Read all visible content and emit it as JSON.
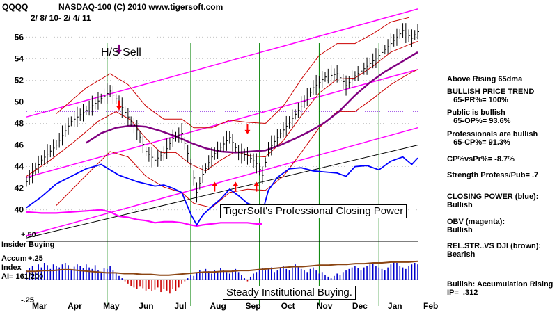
{
  "header": {
    "symbol": "QQQQ",
    "title": "NASDAQ-100  (C) 2010 www.tigersoft.com",
    "date_range": "2/ 8/ 10-  2/ 4/ 11"
  },
  "annotations": {
    "hs_sell": "H/S Sell",
    "closing_power_box": "TigerSoft's Professional Closing Power",
    "institutional_box": "Steady Institutional Buying."
  },
  "lower_panel": {
    "top_value": "+.50",
    "mid_value": "+.25",
    "bottom_value": "-.25",
    "insider_label": "Insider Buying",
    "accum_label_1": "Accum",
    "accum_label_2": "Index",
    "ai_label": "AI= 161/200"
  },
  "side_notes": [
    {
      "text": "Above Rising 65dma"
    },
    {
      "text": "BULLISH PRICE TREND"
    },
    {
      "text": "   65-PR%= 100%"
    },
    {
      "text": "Public is bullish"
    },
    {
      "text": "   65-OP%= 93.6%"
    },
    {
      "text": "Professionals are bullish"
    },
    {
      "text": "   65-CP%= 91.3%"
    },
    {
      "text": "CP%vsPr%= -8.7%"
    },
    {
      "text": "Strength Profess/Pub= .7"
    },
    {
      "text": "CLOSING POWER (blue):"
    },
    {
      "text": "Bullish"
    },
    {
      "text": "OBV (magenta):"
    },
    {
      "text": "Bullish"
    },
    {
      "text": "REL.STR..VS DJI (brown):"
    },
    {
      "text": "Bearish"
    },
    {
      "text": "Bullish: Accumulation Rising"
    },
    {
      "text": "IP=  .312"
    }
  ],
  "chart_data": {
    "type": "line",
    "title": "NASDAQ-100  (C) 2010 www.tigersoft.com",
    "x_categories": [
      "Mar",
      "Apr",
      "May",
      "Jun",
      "Jul",
      "Aug",
      "Sep",
      "Oct",
      "Nov",
      "Dec",
      "Jan",
      "Feb"
    ],
    "ylim": [
      38.5,
      57.5
    ],
    "y_ticks": [
      40,
      42,
      44,
      46,
      48,
      50,
      52,
      54,
      56
    ],
    "colors": {
      "price": "#000000",
      "closing_power": "#0000ff",
      "obv": "#ff00ff",
      "ma65": "#800080",
      "bands": "#cc0000",
      "trend_channel": "#ff00ff",
      "signals": "#008000",
      "accumulation": "#0000cc",
      "distribution": "#cc0000",
      "rel_strength": "#8b4513"
    },
    "series": [
      {
        "name": "price",
        "values": [
          [
            0,
            42.6
          ],
          [
            5,
            44.6
          ],
          [
            10,
            46.0
          ],
          [
            15,
            48.2
          ],
          [
            20,
            49.2
          ],
          [
            25,
            50.3
          ],
          [
            28,
            51.0
          ],
          [
            31,
            49.9
          ],
          [
            34,
            48.6
          ],
          [
            37,
            47.4
          ],
          [
            40,
            45.4
          ],
          [
            43,
            44.6
          ],
          [
            46,
            45.2
          ],
          [
            49,
            46.6
          ],
          [
            52,
            47.1
          ],
          [
            55,
            44.3
          ],
          [
            57,
            41.6
          ],
          [
            59,
            43.3
          ],
          [
            62,
            44.9
          ],
          [
            65,
            45.8
          ],
          [
            68,
            46.7
          ],
          [
            71,
            45.3
          ],
          [
            74,
            45.0
          ],
          [
            77,
            44.3
          ],
          [
            79,
            43.2
          ],
          [
            81,
            45.6
          ],
          [
            84,
            46.7
          ],
          [
            88,
            48.1
          ],
          [
            92,
            49.6
          ],
          [
            96,
            51.3
          ],
          [
            100,
            52.3
          ],
          [
            104,
            52.6
          ],
          [
            107,
            51.5
          ],
          [
            110,
            52.4
          ],
          [
            114,
            53.3
          ],
          [
            118,
            54.3
          ],
          [
            122,
            55.4
          ],
          [
            126,
            56.6
          ],
          [
            129,
            55.9
          ],
          [
            131,
            56.5
          ]
        ]
      },
      {
        "name": "closing_power",
        "values": [
          [
            0,
            40.2
          ],
          [
            5,
            41.2
          ],
          [
            10,
            42.4
          ],
          [
            15,
            43.1
          ],
          [
            20,
            43.8
          ],
          [
            25,
            44.2
          ],
          [
            28,
            43.7
          ],
          [
            31,
            43.2
          ],
          [
            34,
            42.9
          ],
          [
            37,
            42.6
          ],
          [
            40,
            42.4
          ],
          [
            43,
            42.2
          ],
          [
            46,
            42.3
          ],
          [
            49,
            42.0
          ],
          [
            52,
            41.6
          ],
          [
            55,
            39.6
          ],
          [
            57,
            38.6
          ],
          [
            59,
            39.5
          ],
          [
            62,
            40.3
          ],
          [
            65,
            41.0
          ],
          [
            68,
            41.9
          ],
          [
            71,
            41.3
          ],
          [
            74,
            40.6
          ],
          [
            77,
            40.3
          ],
          [
            79,
            39.8
          ],
          [
            81,
            41.8
          ],
          [
            84,
            43.0
          ],
          [
            88,
            43.8
          ],
          [
            92,
            43.9
          ],
          [
            96,
            43.6
          ],
          [
            100,
            43.5
          ],
          [
            104,
            43.4
          ],
          [
            107,
            43.1
          ],
          [
            110,
            44.0
          ],
          [
            114,
            44.1
          ],
          [
            118,
            43.7
          ],
          [
            122,
            44.5
          ],
          [
            126,
            44.9
          ],
          [
            129,
            44.2
          ],
          [
            131,
            44.8
          ]
        ]
      },
      {
        "name": "obv",
        "values": [
          [
            0,
            39.8
          ],
          [
            5,
            39.7
          ],
          [
            10,
            39.7
          ],
          [
            15,
            39.8
          ],
          [
            20,
            39.9
          ],
          [
            25,
            40.0
          ],
          [
            28,
            39.8
          ],
          [
            31,
            39.4
          ],
          [
            34,
            39.3
          ],
          [
            37,
            39.1
          ],
          [
            40,
            39.0
          ],
          [
            43,
            38.8
          ],
          [
            46,
            38.9
          ],
          [
            49,
            38.9
          ],
          [
            52,
            38.8
          ],
          [
            55,
            38.6
          ],
          [
            57,
            38.5
          ],
          [
            59,
            38.6
          ],
          [
            62,
            38.7
          ],
          [
            65,
            38.8
          ],
          [
            68,
            38.8
          ],
          [
            71,
            38.8
          ],
          [
            74,
            38.8
          ],
          [
            77,
            38.7
          ],
          [
            79,
            38.7
          ]
        ]
      },
      {
        "name": "ma65",
        "values": [
          [
            20,
            46.2
          ],
          [
            25,
            47.1
          ],
          [
            30,
            47.6
          ],
          [
            35,
            47.8
          ],
          [
            40,
            47.7
          ],
          [
            45,
            47.3
          ],
          [
            50,
            46.8
          ],
          [
            55,
            46.2
          ],
          [
            60,
            45.7
          ],
          [
            65,
            45.4
          ],
          [
            70,
            45.3
          ],
          [
            75,
            45.4
          ],
          [
            80,
            45.5
          ],
          [
            85,
            46.0
          ],
          [
            90,
            46.6
          ],
          [
            95,
            47.3
          ],
          [
            100,
            48.1
          ],
          [
            105,
            49.2
          ],
          [
            110,
            50.6
          ],
          [
            115,
            51.8
          ],
          [
            120,
            52.8
          ],
          [
            125,
            53.6
          ],
          [
            131,
            54.6
          ]
        ]
      },
      {
        "name": "ma21",
        "values": [
          [
            0,
            43.1
          ],
          [
            8,
            44.6
          ],
          [
            16,
            46.3
          ],
          [
            24,
            48.2
          ],
          [
            30,
            49.1
          ],
          [
            35,
            48.3
          ],
          [
            40,
            46.6
          ],
          [
            45,
            45.3
          ],
          [
            50,
            45.3
          ],
          [
            55,
            44.2
          ],
          [
            60,
            43.6
          ],
          [
            65,
            44.6
          ],
          [
            70,
            45.4
          ],
          [
            75,
            45.0
          ],
          [
            80,
            44.9
          ],
          [
            86,
            46.4
          ],
          [
            92,
            48.7
          ],
          [
            98,
            50.8
          ],
          [
            104,
            52.1
          ],
          [
            110,
            52.2
          ],
          [
            116,
            53.3
          ],
          [
            122,
            54.6
          ],
          [
            128,
            55.3
          ],
          [
            131,
            55.6
          ]
        ]
      },
      {
        "name": "upper_band",
        "values": [
          [
            10,
            48.9
          ],
          [
            20,
            51.3
          ],
          [
            28,
            52.6
          ],
          [
            34,
            51.6
          ],
          [
            40,
            49.6
          ],
          [
            46,
            48.4
          ],
          [
            52,
            48.4
          ],
          [
            56,
            47.6
          ],
          [
            62,
            47.6
          ],
          [
            68,
            48.3
          ],
          [
            74,
            48.1
          ],
          [
            80,
            48.0
          ],
          [
            86,
            49.6
          ],
          [
            92,
            52.1
          ],
          [
            98,
            54.3
          ],
          [
            104,
            55.4
          ],
          [
            110,
            55.4
          ],
          [
            116,
            56.3
          ],
          [
            122,
            57.4
          ],
          [
            128,
            57.8
          ]
        ]
      },
      {
        "name": "lower_band",
        "values": [
          [
            10,
            40.4
          ],
          [
            20,
            43.2
          ],
          [
            28,
            45.4
          ],
          [
            34,
            44.9
          ],
          [
            40,
            43.1
          ],
          [
            46,
            42.1
          ],
          [
            52,
            41.6
          ],
          [
            56,
            40.6
          ],
          [
            62,
            40.2
          ],
          [
            68,
            41.6
          ],
          [
            74,
            41.9
          ],
          [
            80,
            41.8
          ],
          [
            86,
            43.1
          ],
          [
            92,
            45.3
          ],
          [
            98,
            47.6
          ],
          [
            104,
            49.1
          ],
          [
            110,
            49.1
          ],
          [
            116,
            50.3
          ],
          [
            122,
            51.6
          ],
          [
            128,
            52.6
          ],
          [
            131,
            53.0
          ]
        ]
      },
      {
        "name": "channel_upper",
        "values": [
          [
            0,
            48.6
          ],
          [
            131,
            58.6
          ]
        ]
      },
      {
        "name": "channel_mid",
        "values": [
          [
            0,
            43.0
          ],
          [
            131,
            53.0
          ]
        ]
      },
      {
        "name": "channel_lower",
        "values": [
          [
            0,
            37.6
          ],
          [
            131,
            47.6
          ]
        ]
      },
      {
        "name": "channel_lower2",
        "values": [
          [
            0,
            37.4
          ],
          [
            131,
            46.0
          ]
        ]
      },
      {
        "name": "ma_long",
        "values": [
          [
            0,
            49.1
          ],
          [
            131,
            49.1
          ]
        ]
      }
    ],
    "buy_signal_dates": [
      27,
      55,
      78,
      98,
      118
    ],
    "sell_arrows": [
      {
        "x": 31,
        "y": 49.6,
        "dir": "down",
        "color": "red"
      },
      {
        "x": 74,
        "y": 47.4,
        "dir": "down",
        "color": "red"
      },
      {
        "x": 31,
        "y": 54.8,
        "dir": "down",
        "color": "purple"
      }
    ],
    "buy_arrows": [
      {
        "x": 63,
        "y": 42.2,
        "dir": "up",
        "color": "red"
      },
      {
        "x": 70,
        "y": 42.2,
        "dir": "up",
        "color": "red"
      },
      {
        "x": 77,
        "y": 42.2,
        "dir": "up",
        "color": "red"
      }
    ],
    "accum_index": {
      "name": "accumulation_index",
      "range": [
        -0.25,
        0.5
      ],
      "values": [
        0.12,
        0.15,
        0.18,
        0.1,
        0.2,
        0.16,
        0.22,
        0.19,
        0.14,
        0.2,
        0.18,
        0.16,
        0.2,
        0.22,
        0.19,
        0.12,
        0.17,
        0.2,
        0.18,
        0.15,
        0.2,
        0.16,
        0.14,
        0.19,
        0.12,
        0.1,
        0.15,
        0.14,
        0.18,
        0.12,
        0.08,
        0.05,
        0.02,
        -0.02,
        -0.05,
        -0.08,
        -0.1,
        -0.12,
        -0.09,
        -0.11,
        -0.14,
        -0.12,
        -0.15,
        -0.13,
        -0.1,
        -0.16,
        -0.12,
        -0.14,
        -0.18,
        -0.12,
        -0.15,
        -0.1,
        -0.05,
        -0.02,
        0.02,
        0.06,
        0.05,
        0.09,
        0.12,
        0.1,
        0.14,
        0.11,
        0.08,
        0.12,
        0.1,
        0.15,
        0.12,
        0.1,
        0.08,
        0.12,
        0.14,
        0.1,
        0.06,
        0.02,
        -0.02,
        0.04,
        0.08,
        0.1,
        0.12,
        0.15,
        0.12,
        0.14,
        0.16,
        0.1,
        0.12,
        0.15,
        0.18,
        0.14,
        0.12,
        0.16,
        0.2,
        0.18,
        0.14,
        0.12,
        0.1,
        0.14,
        0.16,
        0.12,
        0.08,
        0.1,
        0.06,
        0.04,
        0.02,
        0.05,
        0.08,
        0.06,
        0.1,
        0.12,
        0.14,
        0.16,
        0.18,
        0.15,
        0.12,
        0.16,
        0.18,
        0.2,
        0.22,
        0.18,
        0.16,
        0.14,
        0.12,
        0.16,
        0.2,
        0.24,
        0.22,
        0.18,
        0.16,
        0.14,
        0.18,
        0.2,
        0.22,
        0.2
      ]
    },
    "rel_strength": [
      0.11,
      0.11,
      0.12,
      0.12,
      0.13,
      0.13,
      0.12,
      0.11,
      0.1,
      0.09,
      0.09,
      0.08,
      0.08,
      0.07,
      0.07,
      0.06,
      0.06,
      0.07,
      0.08,
      0.09,
      0.1,
      0.1,
      0.11,
      0.11,
      0.12,
      0.12,
      0.13,
      0.14,
      0.15,
      0.16,
      0.17,
      0.17,
      0.18,
      0.19,
      0.19,
      0.2,
      0.2,
      0.21,
      0.21,
      0.22,
      0.22,
      0.23,
      0.23,
      0.23,
      0.24
    ]
  }
}
